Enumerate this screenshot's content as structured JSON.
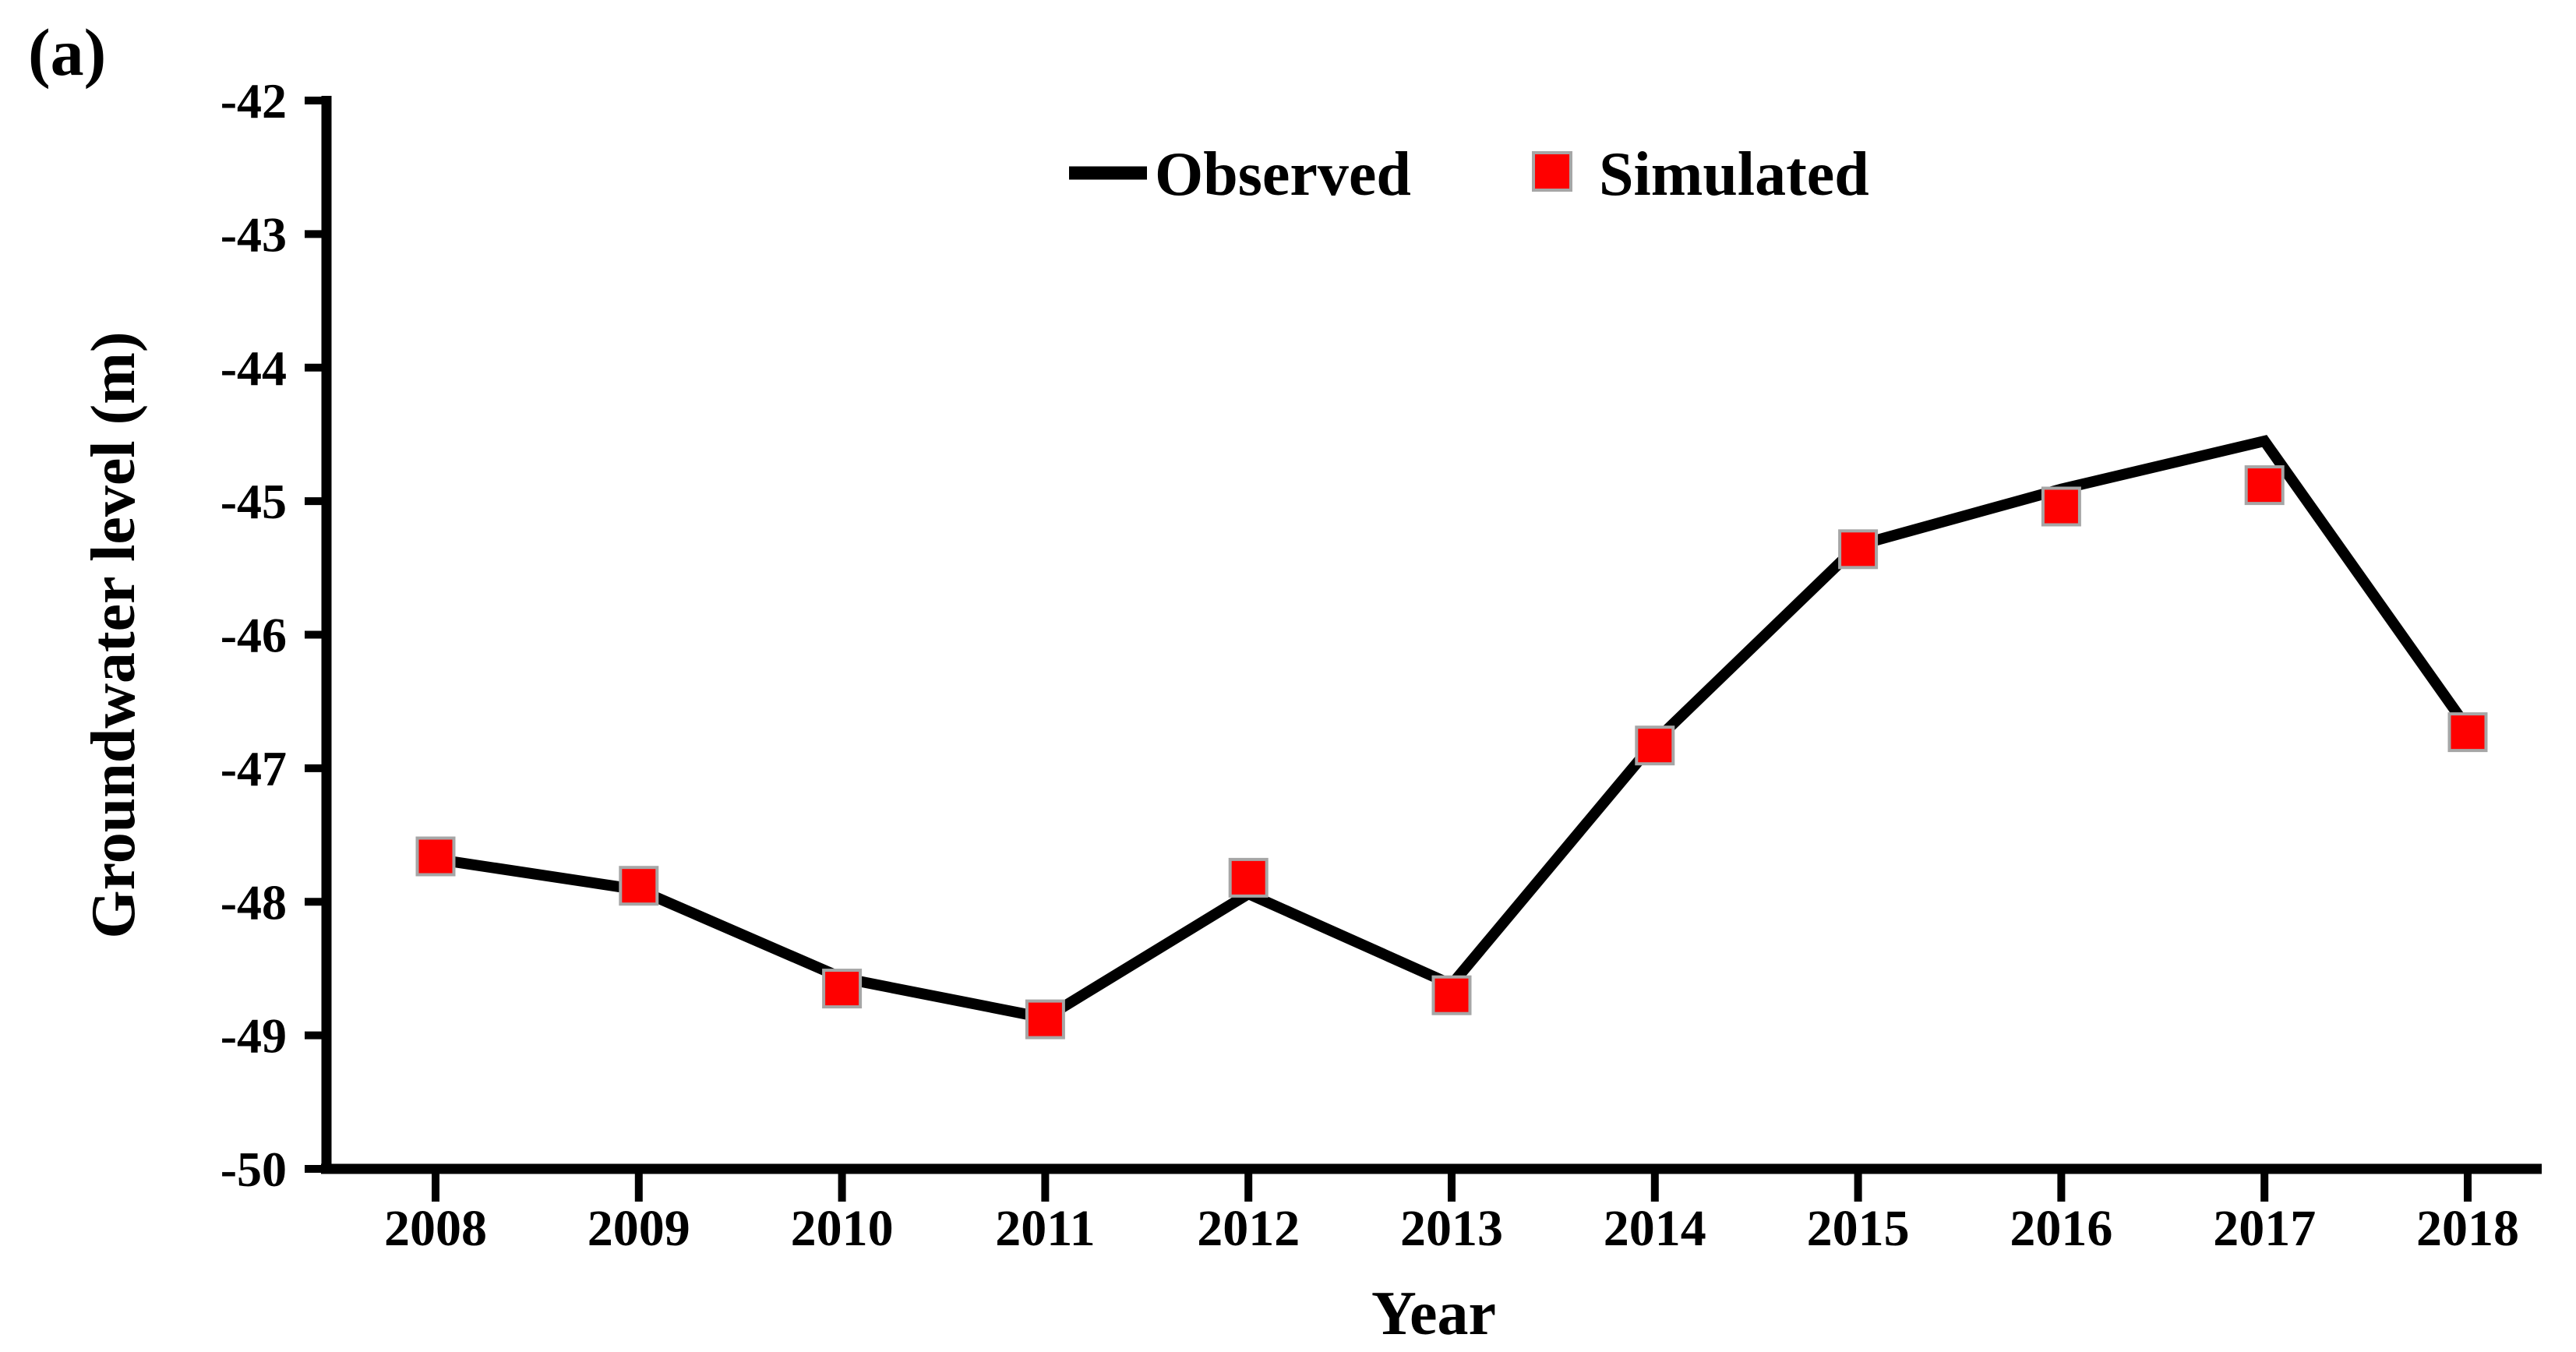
{
  "panel_label": "(a)",
  "colors": {
    "line": "#000000",
    "marker_fill": "#FF0000",
    "marker_border": "#A6A6A6",
    "text": "#000000",
    "background": "#FFFFFF"
  },
  "chart_data": {
    "type": "line",
    "title": "",
    "xlabel": "Year",
    "ylabel": "Groundwater level (m)",
    "categories": [
      2008,
      2009,
      2010,
      2011,
      2012,
      2013,
      2014,
      2015,
      2016,
      2017,
      2018
    ],
    "y_ticks": [
      -42,
      -43,
      -44,
      -45,
      -46,
      -47,
      -48,
      -49,
      -50
    ],
    "ylim": [
      -50,
      -42
    ],
    "grid": false,
    "legend_position": "top-center-inside",
    "series": [
      {
        "name": "Observed",
        "type": "line",
        "color": "#000000",
        "values": [
          -47.68,
          -47.91,
          -48.57,
          -48.87,
          -47.94,
          -48.62,
          -46.8,
          -45.33,
          -44.91,
          -44.55,
          -46.7
        ]
      },
      {
        "name": "Simulated",
        "type": "scatter-square",
        "color": "#FF0000",
        "marker_border": "#A6A6A6",
        "values": [
          -47.66,
          -47.88,
          -48.65,
          -48.88,
          -47.82,
          -48.7,
          -46.83,
          -45.36,
          -45.04,
          -44.88,
          -46.73
        ]
      }
    ]
  }
}
